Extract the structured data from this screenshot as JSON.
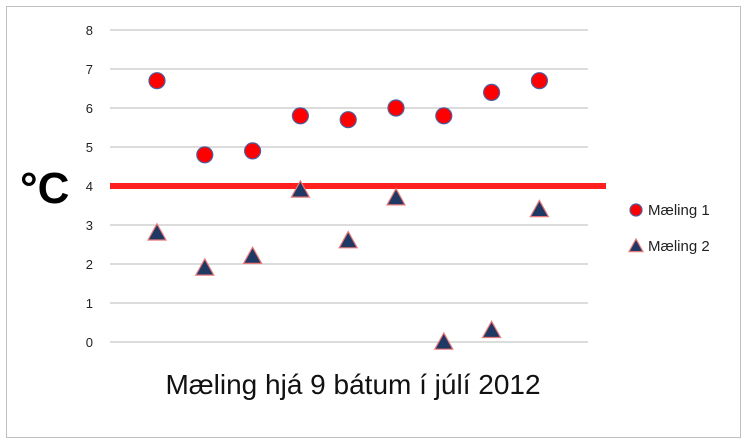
{
  "chart_data": {
    "type": "scatter",
    "xlabel": "Mæling hjá 9 bátum í júlí 2012",
    "ylabel": "°C",
    "ylim": [
      0,
      8
    ],
    "yticks": [
      "0",
      "1",
      "2",
      "3",
      "4",
      "5",
      "6",
      "7",
      "8"
    ],
    "x": [
      1,
      2,
      3,
      4,
      5,
      6,
      7,
      8,
      9
    ],
    "grid": true,
    "legend_position": "right",
    "reference_line": {
      "y": 4,
      "color": "#ff1f1f"
    },
    "series": [
      {
        "name": "Mæling 1",
        "marker": "circle",
        "color": "#ff0000",
        "values": [
          6.7,
          4.8,
          4.9,
          5.8,
          5.7,
          6.0,
          5.8,
          6.4,
          6.7
        ]
      },
      {
        "name": "Mæling 2",
        "marker": "triangle",
        "color": "#1f3864",
        "values": [
          2.8,
          1.9,
          2.2,
          3.9,
          2.6,
          3.7,
          0.0,
          0.3,
          3.4
        ]
      }
    ]
  }
}
